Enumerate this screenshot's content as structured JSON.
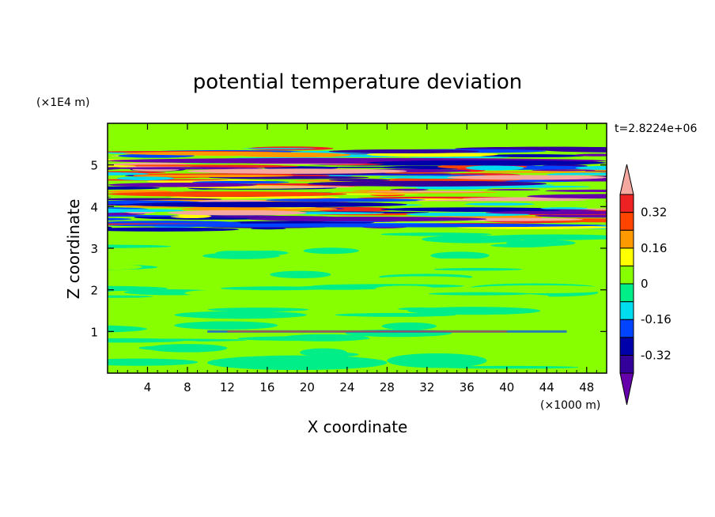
{
  "chart_data": {
    "type": "heatmap",
    "title": "potential temperature deviation",
    "time_label": "t=2.8224e+06",
    "xlabel": "X coordinate",
    "ylabel": "Z coordinate",
    "x_unit": "(×1000 m)",
    "y_unit": "(×1E4 m)",
    "xlim": [
      0,
      50
    ],
    "ylim": [
      0,
      6
    ],
    "x_ticks": [
      4,
      8,
      12,
      16,
      20,
      24,
      28,
      32,
      36,
      40,
      44,
      48
    ],
    "y_ticks": [
      1,
      2,
      3,
      4,
      5
    ],
    "colorbar": {
      "colors": [
        "#6600aa",
        "#33009a",
        "#0000aa",
        "#0044ff",
        "#00ddee",
        "#00ee88",
        "#88ff00",
        "#ffff00",
        "#ff9900",
        "#ff4400",
        "#ee2222",
        "#f5a8a0"
      ],
      "levels": [
        -0.4,
        -0.32,
        -0.24,
        -0.16,
        -0.08,
        0,
        0.08,
        0.16,
        0.24,
        0.32,
        0.4
      ],
      "tick_labels": [
        "0.32",
        "0.16",
        "0",
        "-0.16",
        "-0.32"
      ]
    },
    "regions": [
      {
        "z": [
          0,
          3.5
        ],
        "range": [
          -0.04,
          0.04
        ],
        "description_colors": [
          "#88ff00",
          "#00ee88"
        ]
      },
      {
        "z": [
          3.5,
          5.4
        ],
        "range": [
          -0.4,
          0.4
        ],
        "description_colors": [
          "#6600aa",
          "#0000aa",
          "#ee2222",
          "#f5a8a0"
        ]
      },
      {
        "z": [
          5.4,
          6
        ],
        "range": [
          -0.04,
          0.04
        ],
        "description_colors": [
          "#88ff00",
          "#00ee88"
        ]
      }
    ]
  }
}
